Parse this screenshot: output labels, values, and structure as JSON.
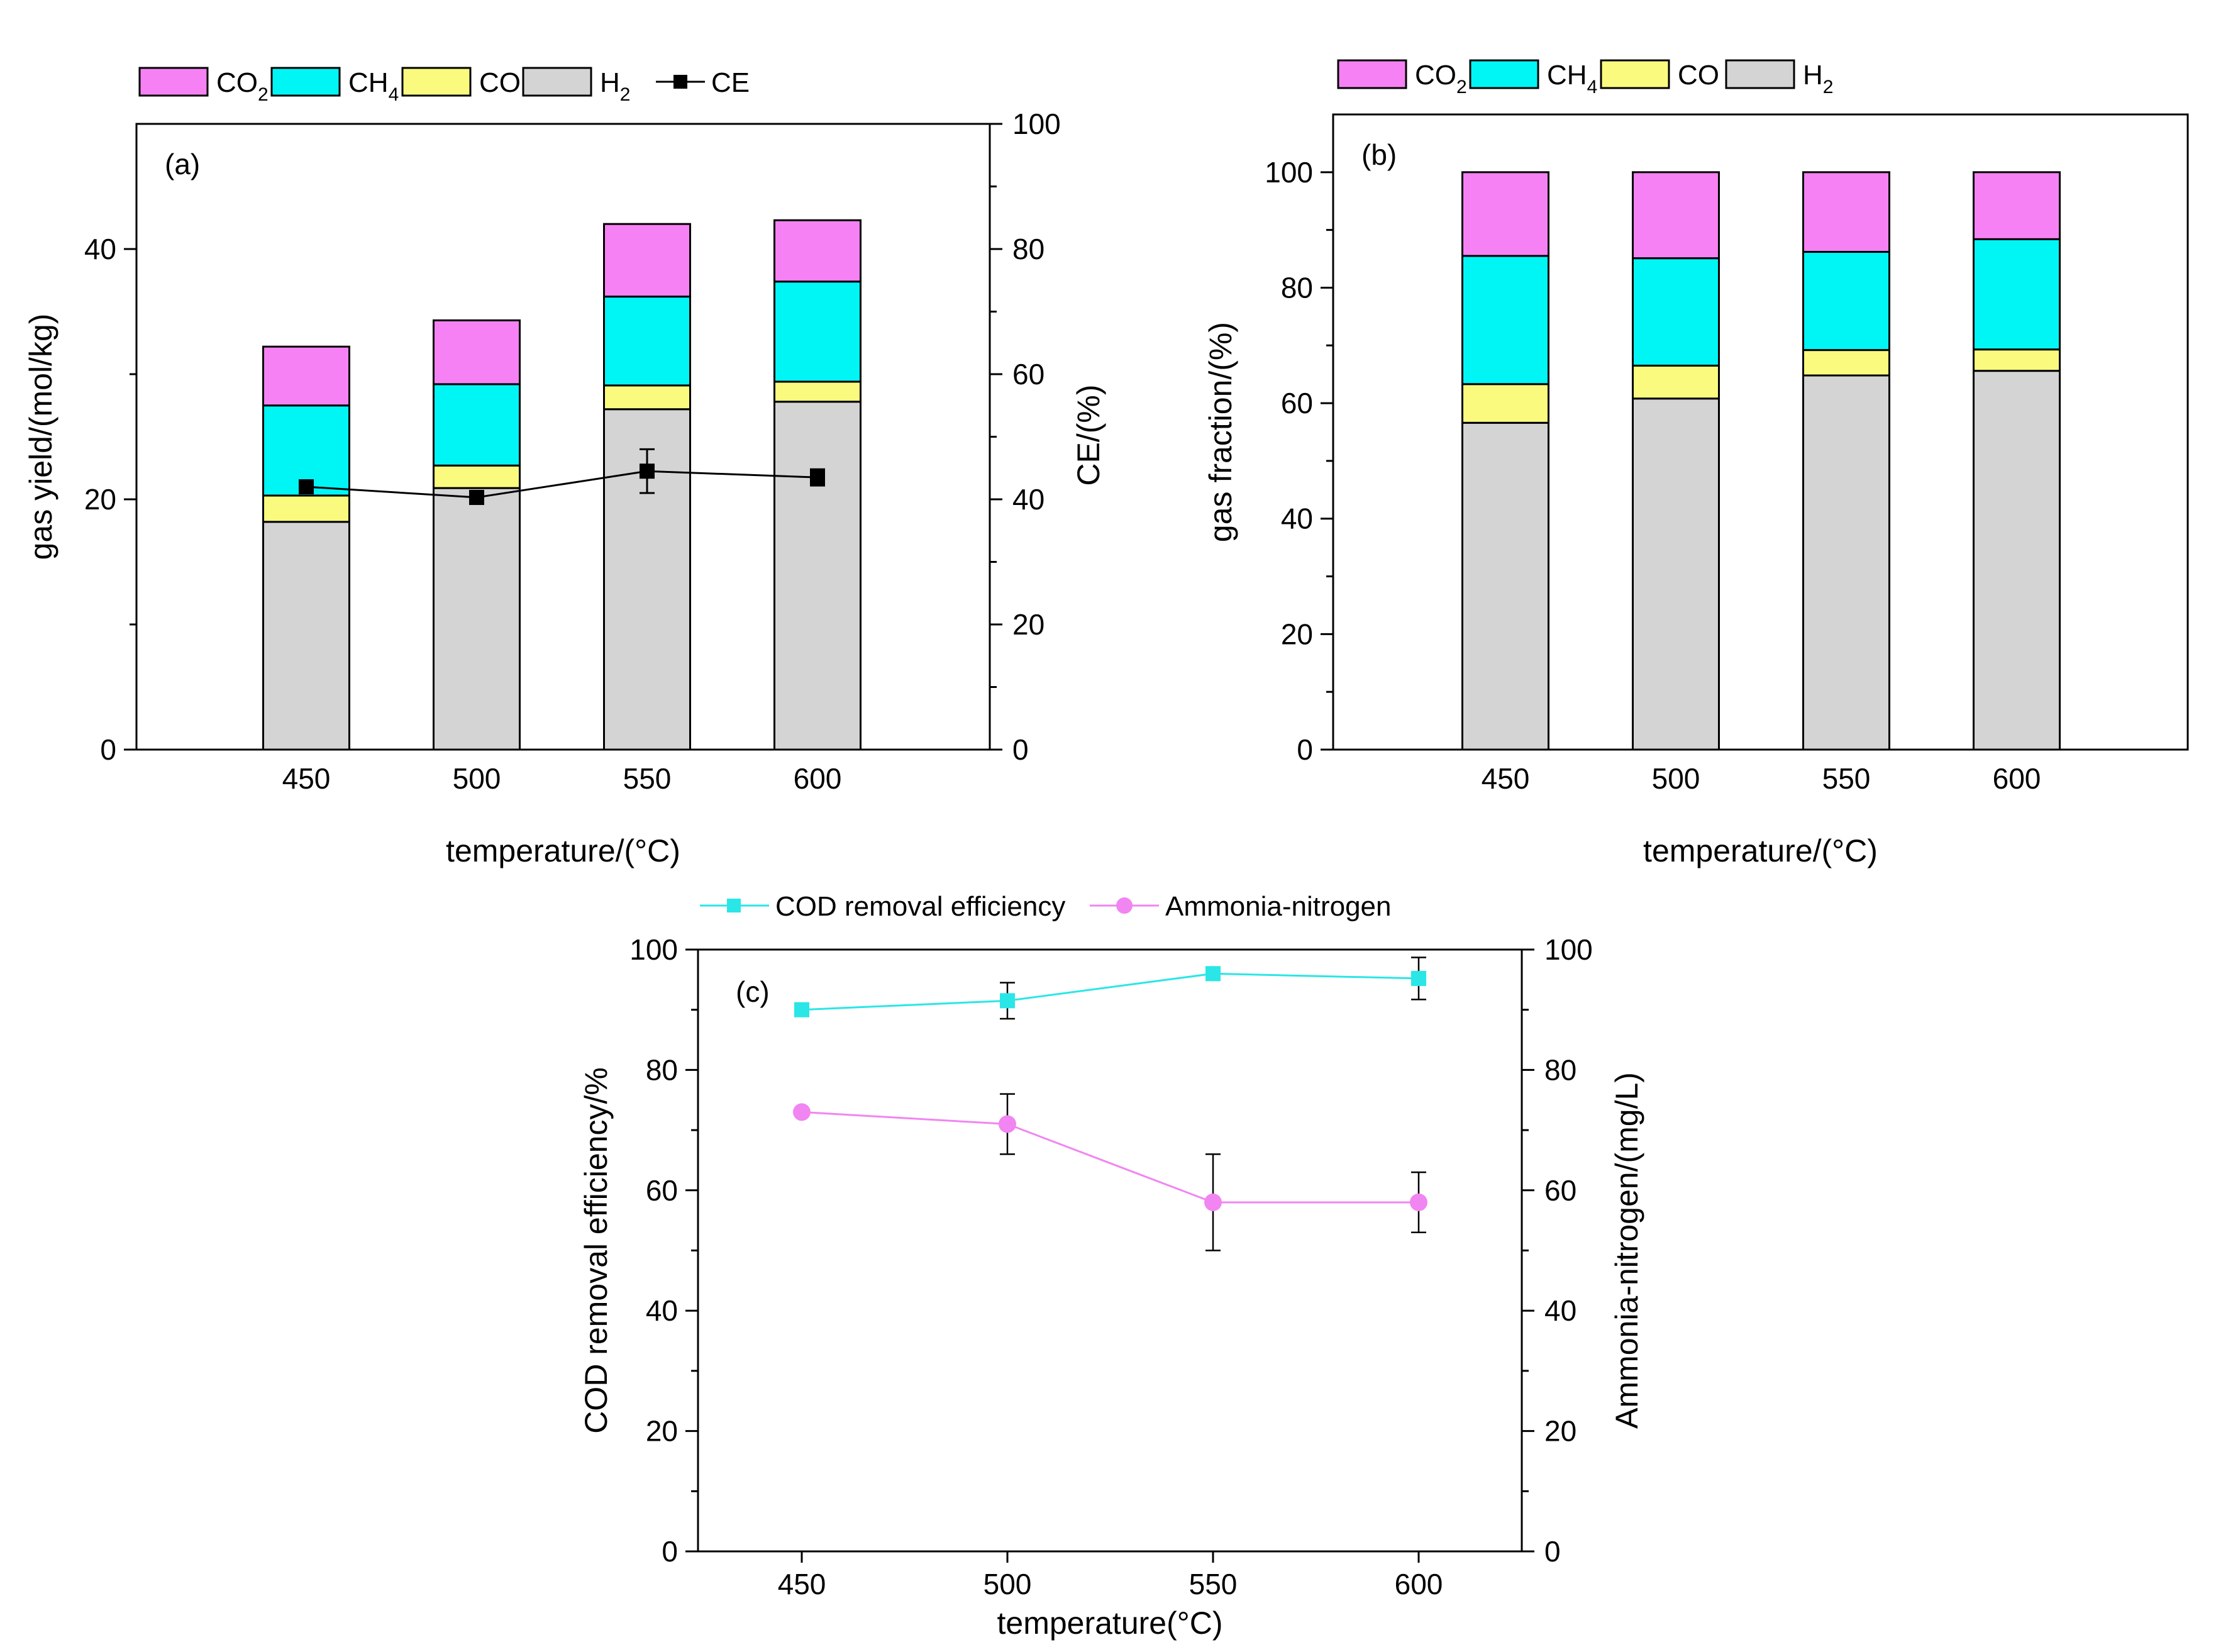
{
  "colors": {
    "co2": "#f681f4",
    "ch4": "#00f5f5",
    "co": "#fafa7e",
    "h2": "#d4d4d4",
    "ce": "#000000",
    "cod": "#2ae6e6",
    "ammonia": "#f185f1"
  },
  "chart_data": [
    {
      "type": "bar",
      "stacked": true,
      "panel_label": "(a)",
      "categories": [
        "450",
        "500",
        "550",
        "600"
      ],
      "xlabel": "temperature/(°C)",
      "ylabel": "gas yield/(mol/kg)",
      "ylim": [
        0,
        50
      ],
      "yticks": [
        0,
        20,
        40
      ],
      "y2label": "CE/(%)",
      "y2lim": [
        0,
        100
      ],
      "y2ticks": [
        0,
        20,
        40,
        60,
        80,
        100
      ],
      "legend": {
        "position": "top",
        "entries": [
          {
            "key": "co2",
            "label": "CO",
            "sub": "2"
          },
          {
            "key": "ch4",
            "label": "CH",
            "sub": "4"
          },
          {
            "key": "co",
            "label": "CO",
            "sub": ""
          },
          {
            "key": "h2",
            "label": "H",
            "sub": "2"
          },
          {
            "key": "ce",
            "label": "CE",
            "sub": ""
          }
        ]
      },
      "series": [
        {
          "name": "H2",
          "key": "h2",
          "values": [
            18.2,
            20.9,
            27.2,
            27.8
          ]
        },
        {
          "name": "CO",
          "key": "co",
          "values": [
            2.1,
            1.8,
            1.9,
            1.6
          ]
        },
        {
          "name": "CH4",
          "key": "ch4",
          "values": [
            7.2,
            6.5,
            7.1,
            8.0
          ]
        },
        {
          "name": "CO2",
          "key": "co2",
          "values": [
            4.7,
            5.1,
            5.8,
            4.9
          ]
        }
      ],
      "line_series": [
        {
          "name": "CE",
          "key": "ce",
          "axis": "right",
          "marker": "square",
          "values": [
            42,
            40.3,
            44.5,
            43.5
          ],
          "errors": [
            0,
            0,
            3.5,
            1.3
          ]
        }
      ]
    },
    {
      "type": "bar",
      "stacked": true,
      "panel_label": "(b)",
      "categories": [
        "450",
        "500",
        "550",
        "600"
      ],
      "xlabel": "temperature/(°C)",
      "ylabel": "gas fraction/(%)",
      "ylim": [
        0,
        110
      ],
      "yticks": [
        0,
        20,
        40,
        60,
        80,
        100
      ],
      "legend": {
        "position": "top",
        "entries": [
          {
            "key": "co2",
            "label": "CO",
            "sub": "2"
          },
          {
            "key": "ch4",
            "label": "CH",
            "sub": "4"
          },
          {
            "key": "co",
            "label": "CO",
            "sub": ""
          },
          {
            "key": "h2",
            "label": "H",
            "sub": "2"
          }
        ]
      },
      "series": [
        {
          "name": "H2",
          "key": "h2",
          "values": [
            56.6,
            60.8,
            64.8,
            65.6
          ]
        },
        {
          "name": "CO",
          "key": "co",
          "values": [
            6.7,
            5.7,
            4.4,
            3.7
          ]
        },
        {
          "name": "CH4",
          "key": "ch4",
          "values": [
            22.2,
            18.6,
            17.0,
            19.1
          ]
        },
        {
          "name": "CO2",
          "key": "co2",
          "values": [
            14.5,
            14.9,
            13.8,
            11.6
          ]
        }
      ]
    },
    {
      "type": "line",
      "panel_label": "(c)",
      "categories": [
        "450",
        "500",
        "550",
        "600"
      ],
      "xlabel": "temperature(°C)",
      "ylabel": "COD removal efficiency/%",
      "ylim": [
        0,
        100
      ],
      "yticks": [
        0,
        20,
        40,
        60,
        80,
        100
      ],
      "y2label": "Ammonia-nitrogen/(mg/L)",
      "y2lim": [
        0,
        100
      ],
      "y2ticks": [
        0,
        20,
        40,
        60,
        80,
        100
      ],
      "legend": {
        "position": "top",
        "entries": [
          {
            "key": "cod",
            "label": "COD removal efficiency",
            "sub": ""
          },
          {
            "key": "ammonia",
            "label": "Ammonia-nitrogen",
            "sub": ""
          }
        ]
      },
      "series": [
        {
          "name": "COD removal efficiency",
          "key": "cod",
          "axis": "left",
          "marker": "square",
          "values": [
            90,
            91.5,
            96,
            95.2
          ],
          "errors": [
            1,
            3,
            1,
            3.5
          ]
        },
        {
          "name": "Ammonia-nitrogen",
          "key": "ammonia",
          "axis": "right",
          "marker": "circle",
          "values": [
            73,
            71,
            58,
            58
          ],
          "errors": [
            0,
            5,
            8,
            5
          ]
        }
      ]
    }
  ]
}
